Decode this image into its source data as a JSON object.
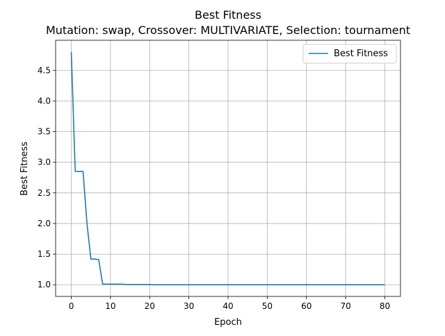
{
  "chart_data": {
    "type": "line",
    "title": "Best Fitness",
    "subtitle": "Mutation: swap, Crossover: MULTIVARIATE, Selection: tournament",
    "xlabel": "Epoch",
    "ylabel": "Best Fitness",
    "xlim": [
      -4,
      84
    ],
    "ylim": [
      0.81,
      4.99
    ],
    "xticks": [
      0,
      10,
      20,
      30,
      40,
      50,
      60,
      70,
      80
    ],
    "yticks": [
      1.0,
      1.5,
      2.0,
      2.5,
      3.0,
      3.5,
      4.0,
      4.5
    ],
    "ytick_labels": [
      "1.0",
      "1.5",
      "2.0",
      "2.5",
      "3.0",
      "3.5",
      "4.0",
      "4.5"
    ],
    "grid": true,
    "legend": {
      "placement": "top-right"
    },
    "series": [
      {
        "name": "Best Fitness",
        "color": "#1f77b4",
        "x": [
          0,
          1,
          2,
          3,
          4,
          5,
          6,
          7,
          8,
          9,
          10,
          11,
          12,
          13,
          14,
          15,
          16,
          17,
          18,
          19,
          20,
          21,
          22,
          23,
          24,
          25,
          26,
          27,
          28,
          29,
          30,
          31,
          32,
          33,
          34,
          35,
          36,
          37,
          38,
          39,
          40,
          41,
          42,
          43,
          44,
          45,
          46,
          47,
          48,
          49,
          50,
          51,
          52,
          53,
          54,
          55,
          56,
          57,
          58,
          59,
          60,
          61,
          62,
          63,
          64,
          65,
          66,
          67,
          68,
          69,
          70,
          71,
          72,
          73,
          74,
          75,
          76,
          77,
          78,
          79,
          80
        ],
        "y": [
          4.8,
          2.85,
          2.85,
          2.85,
          2.0,
          1.42,
          1.42,
          1.41,
          1.01,
          1.01,
          1.01,
          1.01,
          1.01,
          1.01,
          1.005,
          1.005,
          1.005,
          1.005,
          1.005,
          1.005,
          1.005,
          1.0,
          1.0,
          1.0,
          1.0,
          1.0,
          1.0,
          1.0,
          1.0,
          1.0,
          1.0,
          1.0,
          1.0,
          1.0,
          1.0,
          1.0,
          1.0,
          1.0,
          1.0,
          1.0,
          1.0,
          1.0,
          1.0,
          1.0,
          1.0,
          1.0,
          1.0,
          1.0,
          1.0,
          1.0,
          1.0,
          1.0,
          1.0,
          1.0,
          1.0,
          1.0,
          1.0,
          1.0,
          1.0,
          1.0,
          1.0,
          1.0,
          1.0,
          1.0,
          1.0,
          1.0,
          1.0,
          1.0,
          1.0,
          1.0,
          1.0,
          1.0,
          1.0,
          1.0,
          1.0,
          1.0,
          1.0,
          1.0,
          1.0,
          1.0,
          1.0
        ]
      }
    ]
  }
}
